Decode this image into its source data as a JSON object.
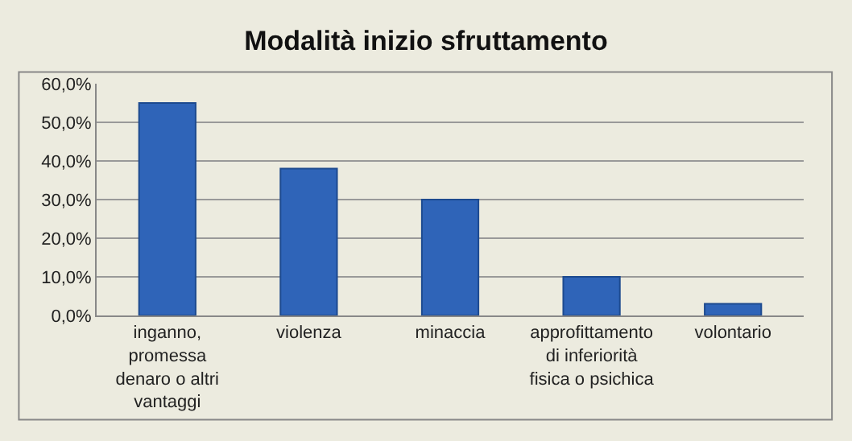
{
  "chart_data": {
    "type": "bar",
    "title": "Modalità inizio sfruttamento",
    "categories": [
      "inganno,\npromessa\ndenaro o altri\nvantaggi",
      "violenza",
      "minaccia",
      "approfittamento\ndi inferiorità\nfisica o psichica",
      "volontario"
    ],
    "values": [
      55,
      38,
      30,
      10,
      3
    ],
    "color": "#2f64b8",
    "ylim": [
      0,
      60
    ],
    "yticks": [
      {
        "value": 0,
        "label": "0,0%"
      },
      {
        "value": 10,
        "label": "10,0%"
      },
      {
        "value": 20,
        "label": "20,0%"
      },
      {
        "value": 30,
        "label": "30,0%"
      },
      {
        "value": 40,
        "label": "40,0%"
      },
      {
        "value": 50,
        "label": "50,0%"
      },
      {
        "value": 60,
        "label": "60,0%"
      }
    ],
    "grid": "y",
    "legend": false
  }
}
